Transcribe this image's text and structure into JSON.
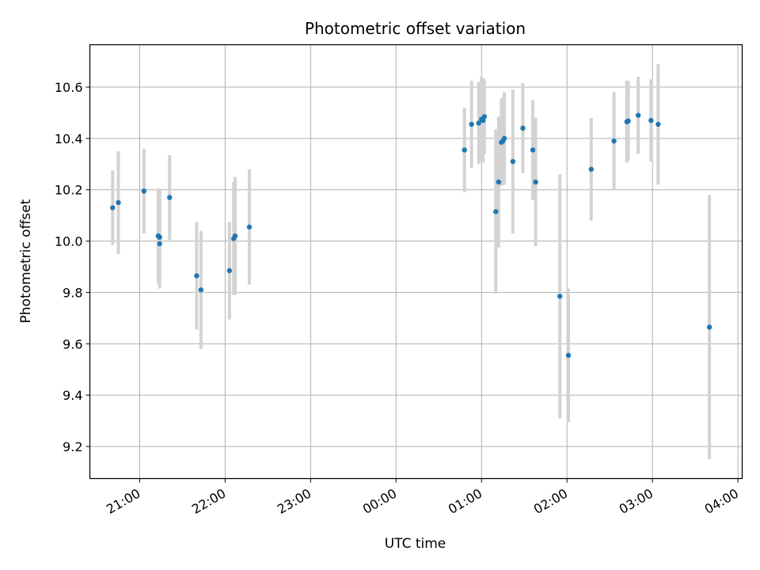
{
  "chart_data": {
    "type": "scatter",
    "title": "Photometric offset variation",
    "xlabel": "UTC time",
    "ylabel": "Photometric offset",
    "xlim": [
      "20:25",
      "28:03"
    ],
    "ylim": [
      9.075,
      10.765
    ],
    "grid": true,
    "legend": "none",
    "x_ticks": [
      "21:00",
      "22:00",
      "23:00",
      "00:00",
      "01:00",
      "02:00",
      "03:00",
      "04:00"
    ],
    "y_ticks": [
      "9.2",
      "9.4",
      "9.6",
      "9.8",
      "10.0",
      "10.2",
      "10.4",
      "10.6"
    ],
    "colors": {
      "point": "#1f77b4",
      "errorbar": "#d3d3d3",
      "grid": "#b0b0b0"
    },
    "series": [
      {
        "points": [
          {
            "t": "20:41",
            "y": 10.13,
            "err": 0.145
          },
          {
            "t": "20:45",
            "y": 10.15,
            "err": 0.2
          },
          {
            "t": "21:03",
            "y": 10.195,
            "err": 0.165
          },
          {
            "t": "21:13",
            "y": 10.02,
            "err": 0.185
          },
          {
            "t": "21:14",
            "y": 10.015,
            "err": 0.185
          },
          {
            "t": "21:14",
            "y": 9.99,
            "err": 0.175
          },
          {
            "t": "21:21",
            "y": 10.17,
            "err": 0.165
          },
          {
            "t": "21:40",
            "y": 9.865,
            "err": 0.21
          },
          {
            "t": "21:43",
            "y": 9.81,
            "err": 0.23
          },
          {
            "t": "22:03",
            "y": 9.885,
            "err": 0.19
          },
          {
            "t": "22:06",
            "y": 10.01,
            "err": 0.22
          },
          {
            "t": "22:07",
            "y": 10.02,
            "err": 0.23
          },
          {
            "t": "22:17",
            "y": 10.055,
            "err": 0.225
          },
          {
            "t": "24:48",
            "y": 10.355,
            "err": 0.165
          },
          {
            "t": "24:53",
            "y": 10.455,
            "err": 0.17
          },
          {
            "t": "24:58",
            "y": 10.46,
            "err": 0.16
          },
          {
            "t": "25:00",
            "y": 10.475,
            "err": 0.165
          },
          {
            "t": "25:01",
            "y": 10.47,
            "err": 0.165
          },
          {
            "t": "25:02",
            "y": 10.485,
            "err": 0.145
          },
          {
            "t": "25:10",
            "y": 10.115,
            "err": 0.32
          },
          {
            "t": "25:12",
            "y": 10.23,
            "err": 0.255
          },
          {
            "t": "25:14",
            "y": 10.385,
            "err": 0.17
          },
          {
            "t": "25:15",
            "y": 10.39,
            "err": 0.17
          },
          {
            "t": "25:16",
            "y": 10.4,
            "err": 0.18
          },
          {
            "t": "25:22",
            "y": 10.31,
            "err": 0.28
          },
          {
            "t": "25:29",
            "y": 10.44,
            "err": 0.175
          },
          {
            "t": "25:36",
            "y": 10.355,
            "err": 0.195
          },
          {
            "t": "25:38",
            "y": 10.23,
            "err": 0.25
          },
          {
            "t": "25:55",
            "y": 9.785,
            "err": 0.475
          },
          {
            "t": "26:01",
            "y": 9.555,
            "err": 0.26
          },
          {
            "t": "26:17",
            "y": 10.28,
            "err": 0.2
          },
          {
            "t": "26:33",
            "y": 10.39,
            "err": 0.19
          },
          {
            "t": "26:42",
            "y": 10.465,
            "err": 0.16
          },
          {
            "t": "26:43",
            "y": 10.468,
            "err": 0.155
          },
          {
            "t": "26:50",
            "y": 10.49,
            "err": 0.15
          },
          {
            "t": "26:59",
            "y": 10.47,
            "err": 0.16
          },
          {
            "t": "27:04",
            "y": 10.455,
            "err": 0.235
          },
          {
            "t": "27:40",
            "y": 9.665,
            "err": 0.515
          }
        ]
      }
    ]
  }
}
